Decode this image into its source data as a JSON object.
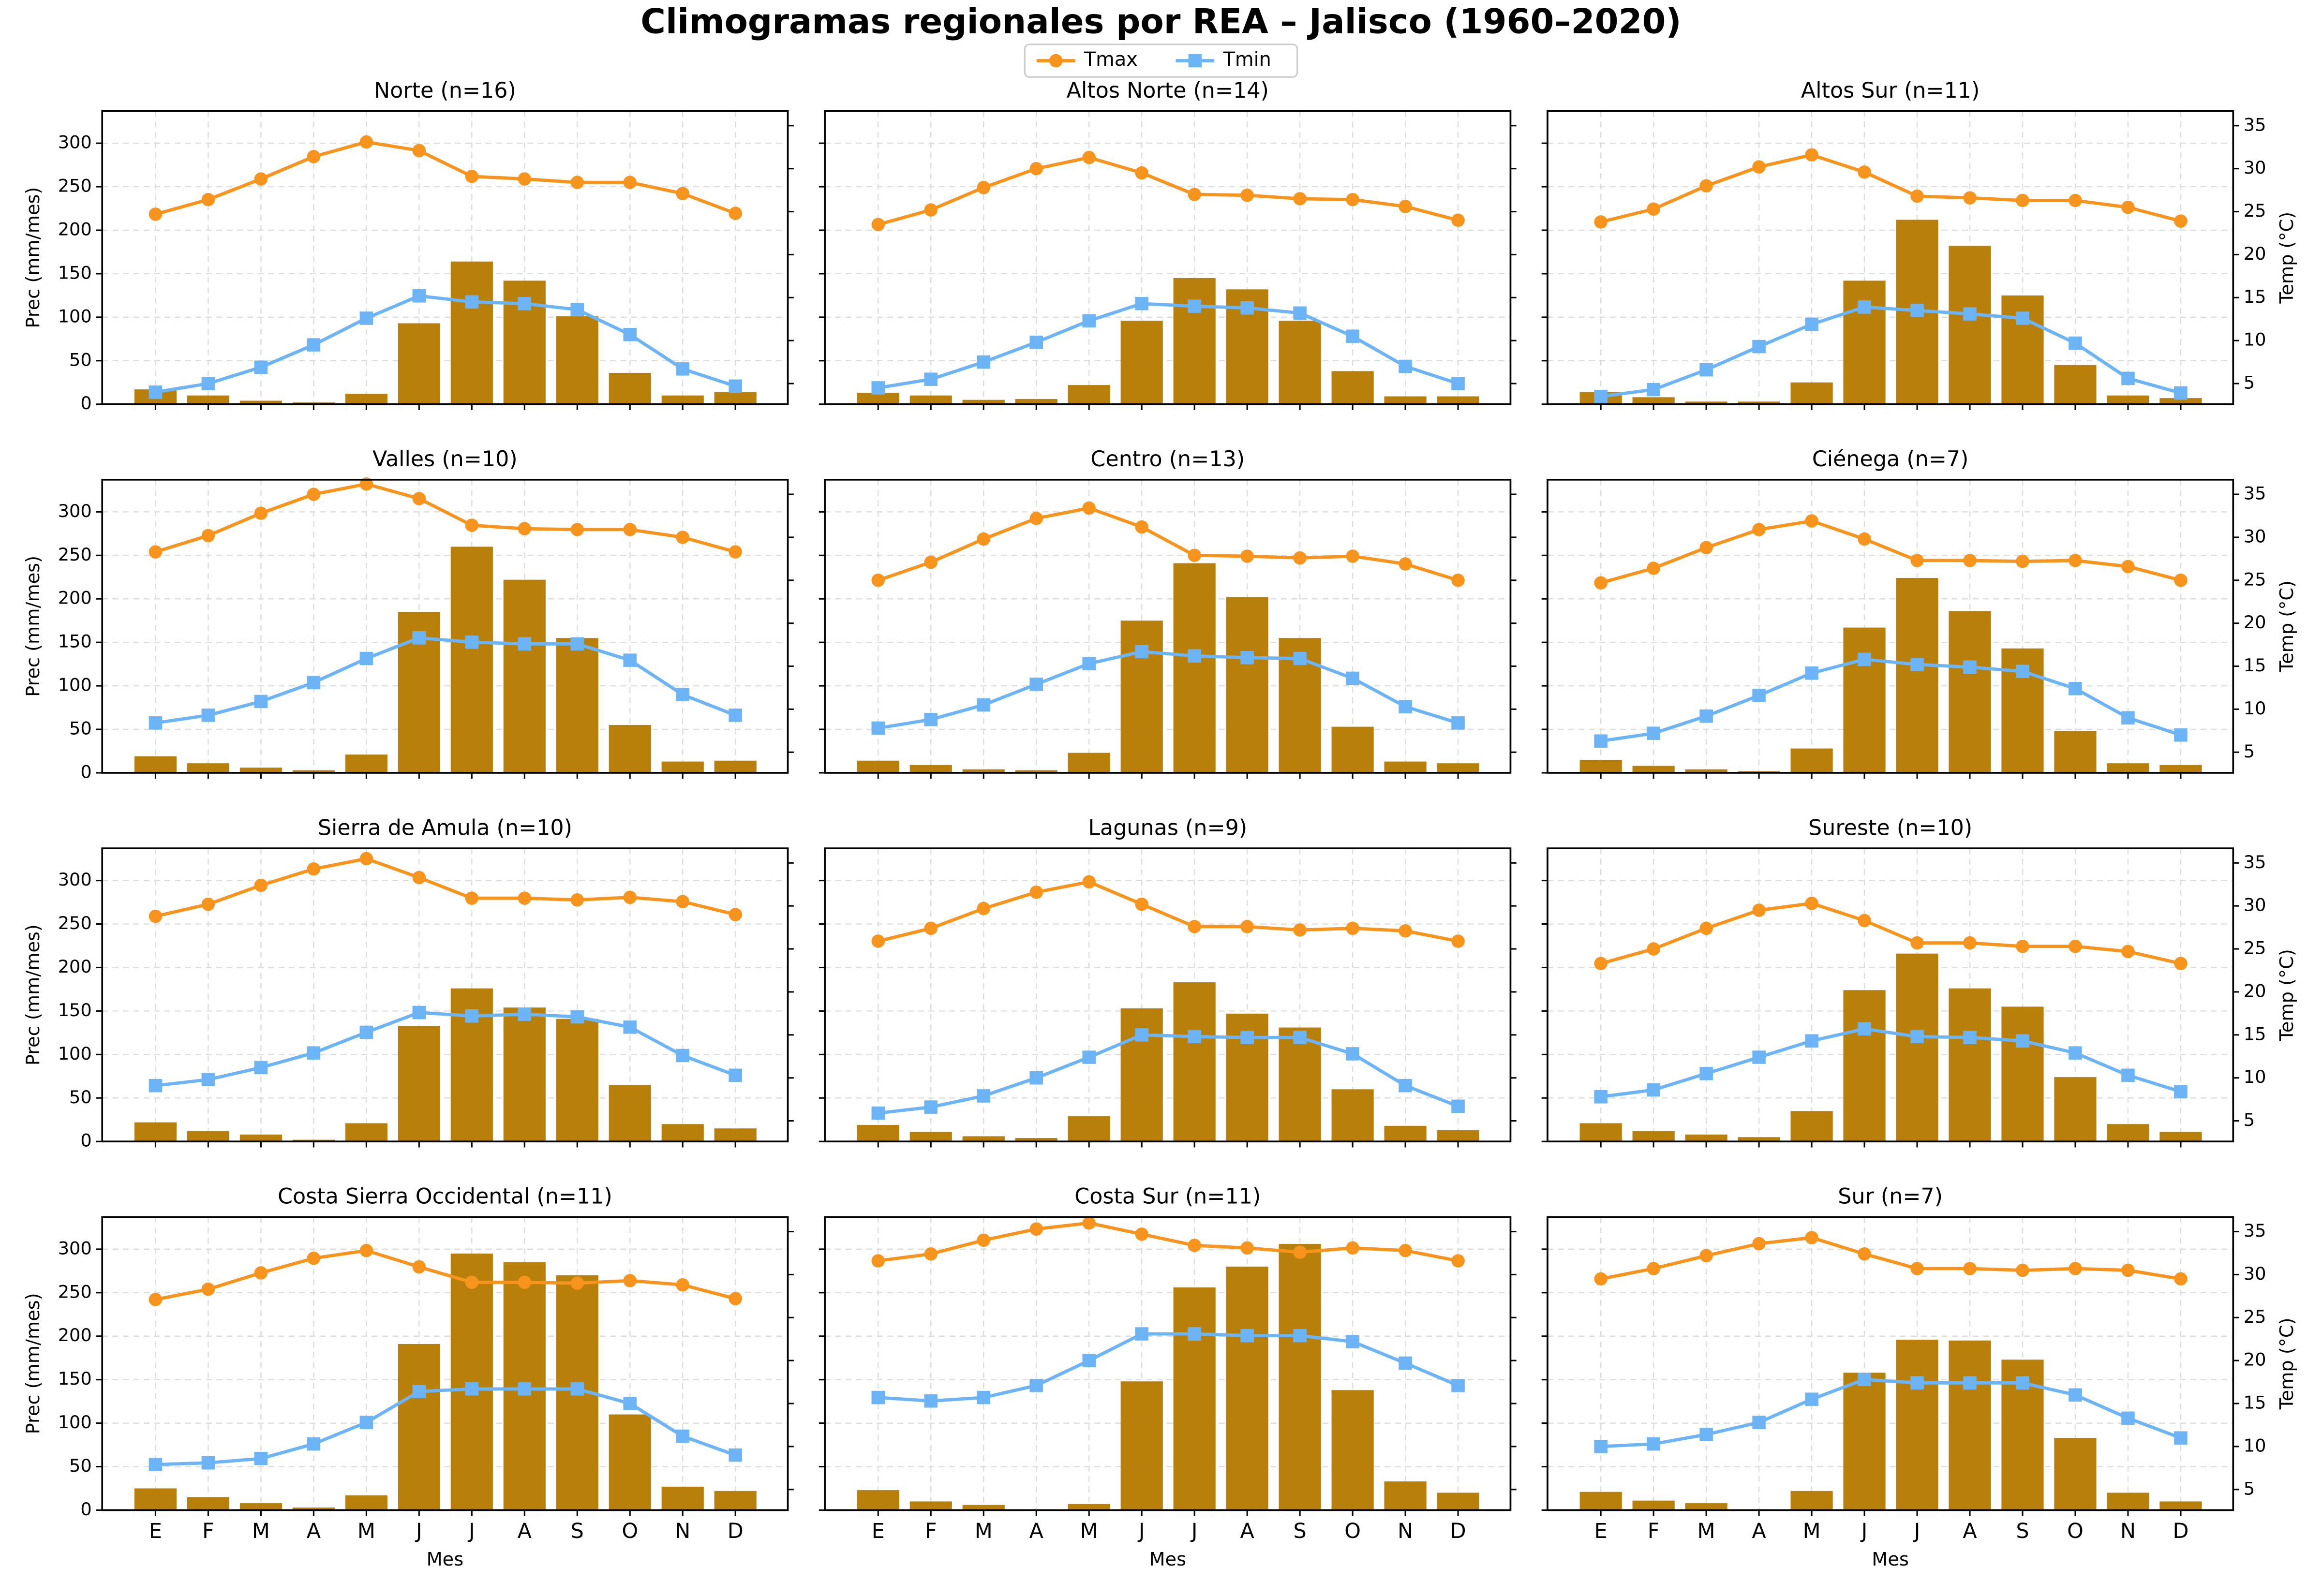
{
  "title": "Climogramas regionales por REA – Jalisco (1960–2020)",
  "shared": {
    "categories": [
      "E",
      "F",
      "M",
      "A",
      "M",
      "J",
      "J",
      "A",
      "S",
      "O",
      "N",
      "D"
    ],
    "ylim": [
      0,
      337
    ],
    "yticks": [
      0,
      50,
      100,
      150,
      200,
      250,
      300
    ],
    "y2lim": [
      2.6,
      36.7
    ],
    "y2ticks": [
      5,
      10,
      15,
      20,
      25,
      30,
      35
    ],
    "xlabel": "Mes",
    "ylabel": "Prec (mm/mes)",
    "y2label": "Temp (°C)",
    "grid": true,
    "legend": "upper center"
  },
  "chart_data": [
    {
      "type": "bar",
      "title": "Norte (n=16)",
      "series": [
        {
          "color": "#b8800a",
          "values": [
            17,
            10,
            4,
            2,
            12,
            93,
            164,
            142,
            101,
            36,
            10,
            14
          ]
        },
        {
          "name": "Tmax",
          "type": "line",
          "axis": "y2",
          "color": "#f7941d",
          "values": [
            24.7,
            26.4,
            28.8,
            31.4,
            33.1,
            32.1,
            29.1,
            28.8,
            28.4,
            28.4,
            27.1,
            24.8
          ]
        },
        {
          "name": "Tmin",
          "type": "line",
          "axis": "y2",
          "color": "#6cb4f5",
          "values": [
            4.0,
            5.0,
            6.9,
            9.5,
            12.6,
            15.2,
            14.5,
            14.3,
            13.6,
            10.7,
            6.7,
            4.7
          ]
        }
      ]
    },
    {
      "type": "bar",
      "title": "Altos Norte (n=14)",
      "series": [
        {
          "color": "#b8800a",
          "values": [
            13,
            10,
            5,
            6,
            22,
            96,
            145,
            132,
            96,
            38,
            9,
            9
          ]
        },
        {
          "name": "Tmax",
          "type": "line",
          "axis": "y2",
          "color": "#f7941d",
          "values": [
            23.5,
            25.2,
            27.8,
            30,
            31.3,
            29.5,
            27,
            26.9,
            26.5,
            26.4,
            25.6,
            24
          ]
        },
        {
          "name": "Tmin",
          "type": "line",
          "axis": "y2",
          "color": "#6cb4f5",
          "values": [
            4.5,
            5.5,
            7.5,
            9.8,
            12.3,
            14.3,
            14,
            13.8,
            13.2,
            10.5,
            7,
            5
          ]
        }
      ]
    },
    {
      "type": "bar",
      "title": "Altos Sur (n=11)",
      "series": [
        {
          "color": "#b8800a",
          "values": [
            14,
            8,
            3,
            3,
            25,
            142,
            212,
            182,
            125,
            45,
            10,
            7
          ]
        },
        {
          "name": "Tmax",
          "type": "line",
          "axis": "y2",
          "color": "#f7941d",
          "values": [
            23.8,
            25.3,
            28,
            30.2,
            31.6,
            29.6,
            26.8,
            26.6,
            26.3,
            26.3,
            25.5,
            23.9
          ]
        },
        {
          "name": "Tmin",
          "type": "line",
          "axis": "y2",
          "color": "#6cb4f5",
          "values": [
            3.5,
            4.3,
            6.6,
            9.3,
            11.9,
            13.9,
            13.5,
            13.1,
            12.6,
            9.7,
            5.6,
            3.9
          ]
        }
      ]
    },
    {
      "type": "bar",
      "title": "Valles (n=10)",
      "series": [
        {
          "color": "#b8800a",
          "values": [
            19,
            11,
            6,
            3,
            21,
            185,
            260,
            222,
            155,
            55,
            13,
            14
          ]
        },
        {
          "name": "Tmax",
          "type": "line",
          "axis": "y2",
          "color": "#f7941d",
          "values": [
            28.3,
            30.2,
            32.8,
            35.0,
            36.2,
            34.5,
            31.4,
            31.0,
            30.9,
            30.9,
            30.0,
            28.3
          ]
        },
        {
          "name": "Tmin",
          "type": "line",
          "axis": "y2",
          "color": "#6cb4f5",
          "values": [
            8.4,
            9.3,
            10.9,
            13.1,
            15.9,
            18.3,
            17.8,
            17.6,
            17.6,
            15.7,
            11.7,
            9.3
          ]
        }
      ]
    },
    {
      "type": "bar",
      "title": "Centro (n=13)",
      "series": [
        {
          "color": "#b8800a",
          "values": [
            14,
            9,
            4,
            3,
            23,
            175,
            241,
            202,
            155,
            53,
            13,
            11
          ]
        },
        {
          "name": "Tmax",
          "type": "line",
          "axis": "y2",
          "color": "#f7941d",
          "values": [
            25.0,
            27.1,
            29.8,
            32.2,
            33.4,
            31.2,
            27.9,
            27.8,
            27.6,
            27.8,
            26.9,
            25.0
          ]
        },
        {
          "name": "Tmin",
          "type": "line",
          "axis": "y2",
          "color": "#6cb4f5",
          "values": [
            7.8,
            8.8,
            10.5,
            12.9,
            15.3,
            16.7,
            16.2,
            16.0,
            15.9,
            13.6,
            10.3,
            8.4
          ]
        }
      ]
    },
    {
      "type": "bar",
      "title": "Ciénega (n=7)",
      "series": [
        {
          "color": "#b8800a",
          "values": [
            15,
            8,
            4,
            2,
            28,
            167,
            224,
            186,
            143,
            48,
            11,
            9
          ]
        },
        {
          "name": "Tmax",
          "type": "line",
          "axis": "y2",
          "color": "#f7941d",
          "values": [
            24.7,
            26.4,
            28.8,
            30.9,
            31.9,
            29.8,
            27.3,
            27.3,
            27.2,
            27.3,
            26.6,
            25
          ]
        },
        {
          "name": "Tmin",
          "type": "line",
          "axis": "y2",
          "color": "#6cb4f5",
          "values": [
            6.3,
            7.2,
            9.2,
            11.6,
            14.2,
            15.8,
            15.2,
            14.9,
            14.4,
            12.4,
            9,
            7
          ]
        }
      ]
    },
    {
      "type": "bar",
      "title": "Sierra de Amula (n=10)",
      "series": [
        {
          "color": "#b8800a",
          "values": [
            22,
            12,
            8,
            2,
            21,
            133,
            176,
            154,
            141,
            65,
            20,
            15
          ]
        },
        {
          "name": "Tmax",
          "type": "line",
          "axis": "y2",
          "color": "#f7941d",
          "values": [
            28.8,
            30.2,
            32.4,
            34.3,
            35.5,
            33.3,
            30.9,
            30.9,
            30.7,
            31.0,
            30.5,
            29.0
          ]
        },
        {
          "name": "Tmin",
          "type": "line",
          "axis": "y2",
          "color": "#6cb4f5",
          "values": [
            9.1,
            9.8,
            11.2,
            12.9,
            15.3,
            17.6,
            17.2,
            17.4,
            17.1,
            15.9,
            12.6,
            10.3
          ]
        }
      ]
    },
    {
      "type": "bar",
      "title": "Lagunas (n=9)",
      "series": [
        {
          "color": "#b8800a",
          "values": [
            19,
            11,
            6,
            4,
            29,
            153,
            183,
            147,
            131,
            60,
            18,
            13
          ]
        },
        {
          "name": "Tmax",
          "type": "line",
          "axis": "y2",
          "color": "#f7941d",
          "values": [
            25.9,
            27.4,
            29.7,
            31.6,
            32.8,
            30.2,
            27.6,
            27.6,
            27.2,
            27.4,
            27.1,
            25.9
          ]
        },
        {
          "name": "Tmin",
          "type": "line",
          "axis": "y2",
          "color": "#6cb4f5",
          "values": [
            5.9,
            6.6,
            7.9,
            10,
            12.4,
            15,
            14.8,
            14.7,
            14.7,
            12.8,
            9.1,
            6.7
          ]
        }
      ]
    },
    {
      "type": "bar",
      "title": "Sureste (n=10)",
      "series": [
        {
          "color": "#b8800a",
          "values": [
            21,
            12,
            8,
            5,
            35,
            174,
            216,
            176,
            155,
            74,
            20,
            11
          ]
        },
        {
          "name": "Tmax",
          "type": "line",
          "axis": "y2",
          "color": "#f7941d",
          "values": [
            23.3,
            25,
            27.4,
            29.5,
            30.3,
            28.3,
            25.7,
            25.7,
            25.3,
            25.3,
            24.7,
            23.3
          ]
        },
        {
          "name": "Tmin",
          "type": "line",
          "axis": "y2",
          "color": "#6cb4f5",
          "values": [
            7.8,
            8.6,
            10.5,
            12.4,
            14.3,
            15.7,
            14.8,
            14.7,
            14.3,
            12.9,
            10.3,
            8.4
          ]
        }
      ]
    },
    {
      "type": "bar",
      "title": "Costa Sierra Occidental (n=11)",
      "series": [
        {
          "color": "#b8800a",
          "values": [
            25,
            15,
            8,
            3,
            17,
            191,
            295,
            285,
            270,
            110,
            27,
            22
          ]
        },
        {
          "name": "Tmax",
          "type": "line",
          "axis": "y2",
          "color": "#f7941d",
          "values": [
            27.1,
            28.3,
            30.2,
            31.9,
            32.8,
            30.9,
            29.1,
            29.1,
            29.0,
            29.3,
            28.8,
            27.2
          ]
        },
        {
          "name": "Tmin",
          "type": "line",
          "axis": "y2",
          "color": "#6cb4f5",
          "values": [
            7.9,
            8.1,
            8.6,
            10.3,
            12.8,
            16.4,
            16.7,
            16.7,
            16.7,
            15.0,
            11.2,
            9.0
          ]
        }
      ]
    },
    {
      "type": "bar",
      "title": "Costa Sur (n=11)",
      "series": [
        {
          "color": "#b8800a",
          "values": [
            23,
            10,
            6,
            1,
            7,
            148,
            256,
            280,
            306,
            138,
            33,
            20
          ]
        },
        {
          "name": "Tmax",
          "type": "line",
          "axis": "y2",
          "color": "#f7941d",
          "values": [
            31.6,
            32.4,
            34,
            35.3,
            36.0,
            34.7,
            33.4,
            33.1,
            32.6,
            33.1,
            32.8,
            31.6
          ]
        },
        {
          "name": "Tmin",
          "type": "line",
          "axis": "y2",
          "color": "#6cb4f5",
          "values": [
            15.7,
            15.3,
            15.7,
            17.1,
            20.0,
            23.1,
            23.1,
            22.9,
            22.9,
            22.2,
            19.7,
            17.1
          ]
        }
      ]
    },
    {
      "type": "bar",
      "title": "Sur (n=7)",
      "series": [
        {
          "color": "#b8800a",
          "values": [
            21,
            11,
            8,
            1,
            22,
            158,
            196,
            195,
            173,
            83,
            20,
            10
          ]
        },
        {
          "name": "Tmax",
          "type": "line",
          "axis": "y2",
          "color": "#f7941d",
          "values": [
            29.5,
            30.7,
            32.2,
            33.6,
            34.3,
            32.4,
            30.7,
            30.7,
            30.5,
            30.7,
            30.5,
            29.5
          ]
        },
        {
          "name": "Tmin",
          "type": "line",
          "axis": "y2",
          "color": "#6cb4f5",
          "values": [
            10,
            10.3,
            11.4,
            12.8,
            15.5,
            17.8,
            17.4,
            17.4,
            17.4,
            16,
            13.3,
            11
          ]
        }
      ]
    }
  ]
}
